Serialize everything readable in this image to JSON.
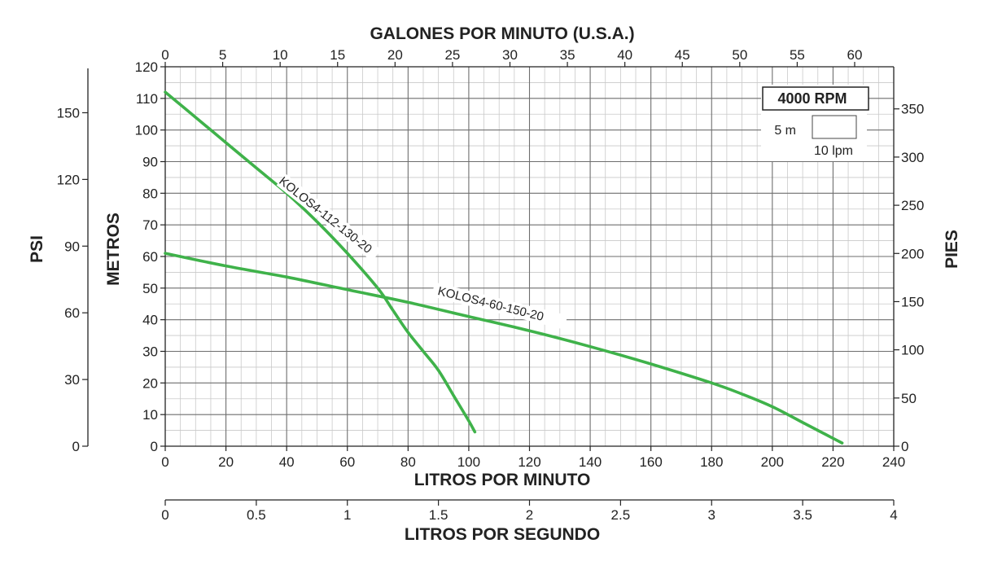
{
  "chart_data": {
    "type": "line",
    "titles": {
      "top_axis": "GALONES POR MINUTO (U.S.A.)",
      "bottom_axis": "LITROS POR MINUTO",
      "seconds_axis": "LITROS POR SEGUNDO",
      "left_inner_axis": "METROS",
      "left_outer_axis": "PSI",
      "right_axis": "PIES"
    },
    "axes": {
      "lpm": {
        "range": [
          0,
          240
        ],
        "ticks": [
          0,
          20,
          40,
          60,
          80,
          100,
          120,
          140,
          160,
          180,
          200,
          220,
          240
        ],
        "labels": [
          "0",
          "20",
          "40",
          "60",
          "80",
          "100",
          "120",
          "140",
          "160",
          "180",
          "200",
          "220",
          "240"
        ]
      },
      "gpm": {
        "ticks": [
          0,
          5,
          10,
          15,
          20,
          25,
          30,
          35,
          40,
          45,
          50,
          55,
          60
        ],
        "labels": [
          "0",
          "5",
          "10",
          "15",
          "20",
          "25",
          "30",
          "35",
          "40",
          "45",
          "50",
          "55",
          "60"
        ]
      },
      "lps": {
        "ticks": [
          0,
          0.5,
          1,
          1.5,
          2,
          2.5,
          3,
          3.5,
          4
        ],
        "labels": [
          "0",
          "0.5",
          "1",
          "1.5",
          "2",
          "2.5",
          "3",
          "3.5",
          "4"
        ]
      },
      "metros": {
        "range": [
          0,
          120
        ],
        "ticks": [
          0,
          10,
          20,
          30,
          40,
          50,
          60,
          70,
          80,
          90,
          100,
          110,
          120
        ],
        "labels": [
          "0",
          "10",
          "20",
          "30",
          "40",
          "50",
          "60",
          "70",
          "80",
          "90",
          "100",
          "110",
          "120"
        ]
      },
      "psi": {
        "ticks": [
          0,
          30,
          60,
          90,
          120,
          150
        ],
        "labels": [
          "0",
          "30",
          "60",
          "90",
          "120",
          "150"
        ]
      },
      "pies": {
        "ticks": [
          0,
          50,
          100,
          150,
          200,
          250,
          300,
          350
        ],
        "labels": [
          "0",
          "50",
          "100",
          "150",
          "200",
          "250",
          "300",
          "350"
        ]
      }
    },
    "grid": true,
    "series": [
      {
        "name": "KOLOS4-112-130-20",
        "color": "#3fb24a",
        "x": [
          0,
          10,
          20,
          30,
          40,
          50,
          60,
          70,
          75,
          80,
          85,
          90,
          95,
          100,
          102
        ],
        "y": [
          112,
          104,
          96,
          88,
          80,
          71,
          61,
          50,
          43,
          36,
          30,
          24,
          16,
          8,
          4.5
        ]
      },
      {
        "name": "KOLOS4-60-150-20",
        "color": "#3fb24a",
        "x": [
          0,
          20,
          40,
          60,
          80,
          100,
          120,
          140,
          160,
          180,
          190,
          200,
          210,
          215,
          220,
          223
        ],
        "y": [
          61,
          57,
          53.5,
          49.5,
          45.5,
          41,
          36.5,
          31.5,
          26,
          20,
          16.5,
          12.5,
          7.5,
          5,
          2.5,
          1
        ]
      }
    ],
    "legend": {
      "title": "4000 RPM",
      "scale_height": "5 m",
      "scale_width": "10 lpm",
      "placement": "top-right"
    }
  }
}
